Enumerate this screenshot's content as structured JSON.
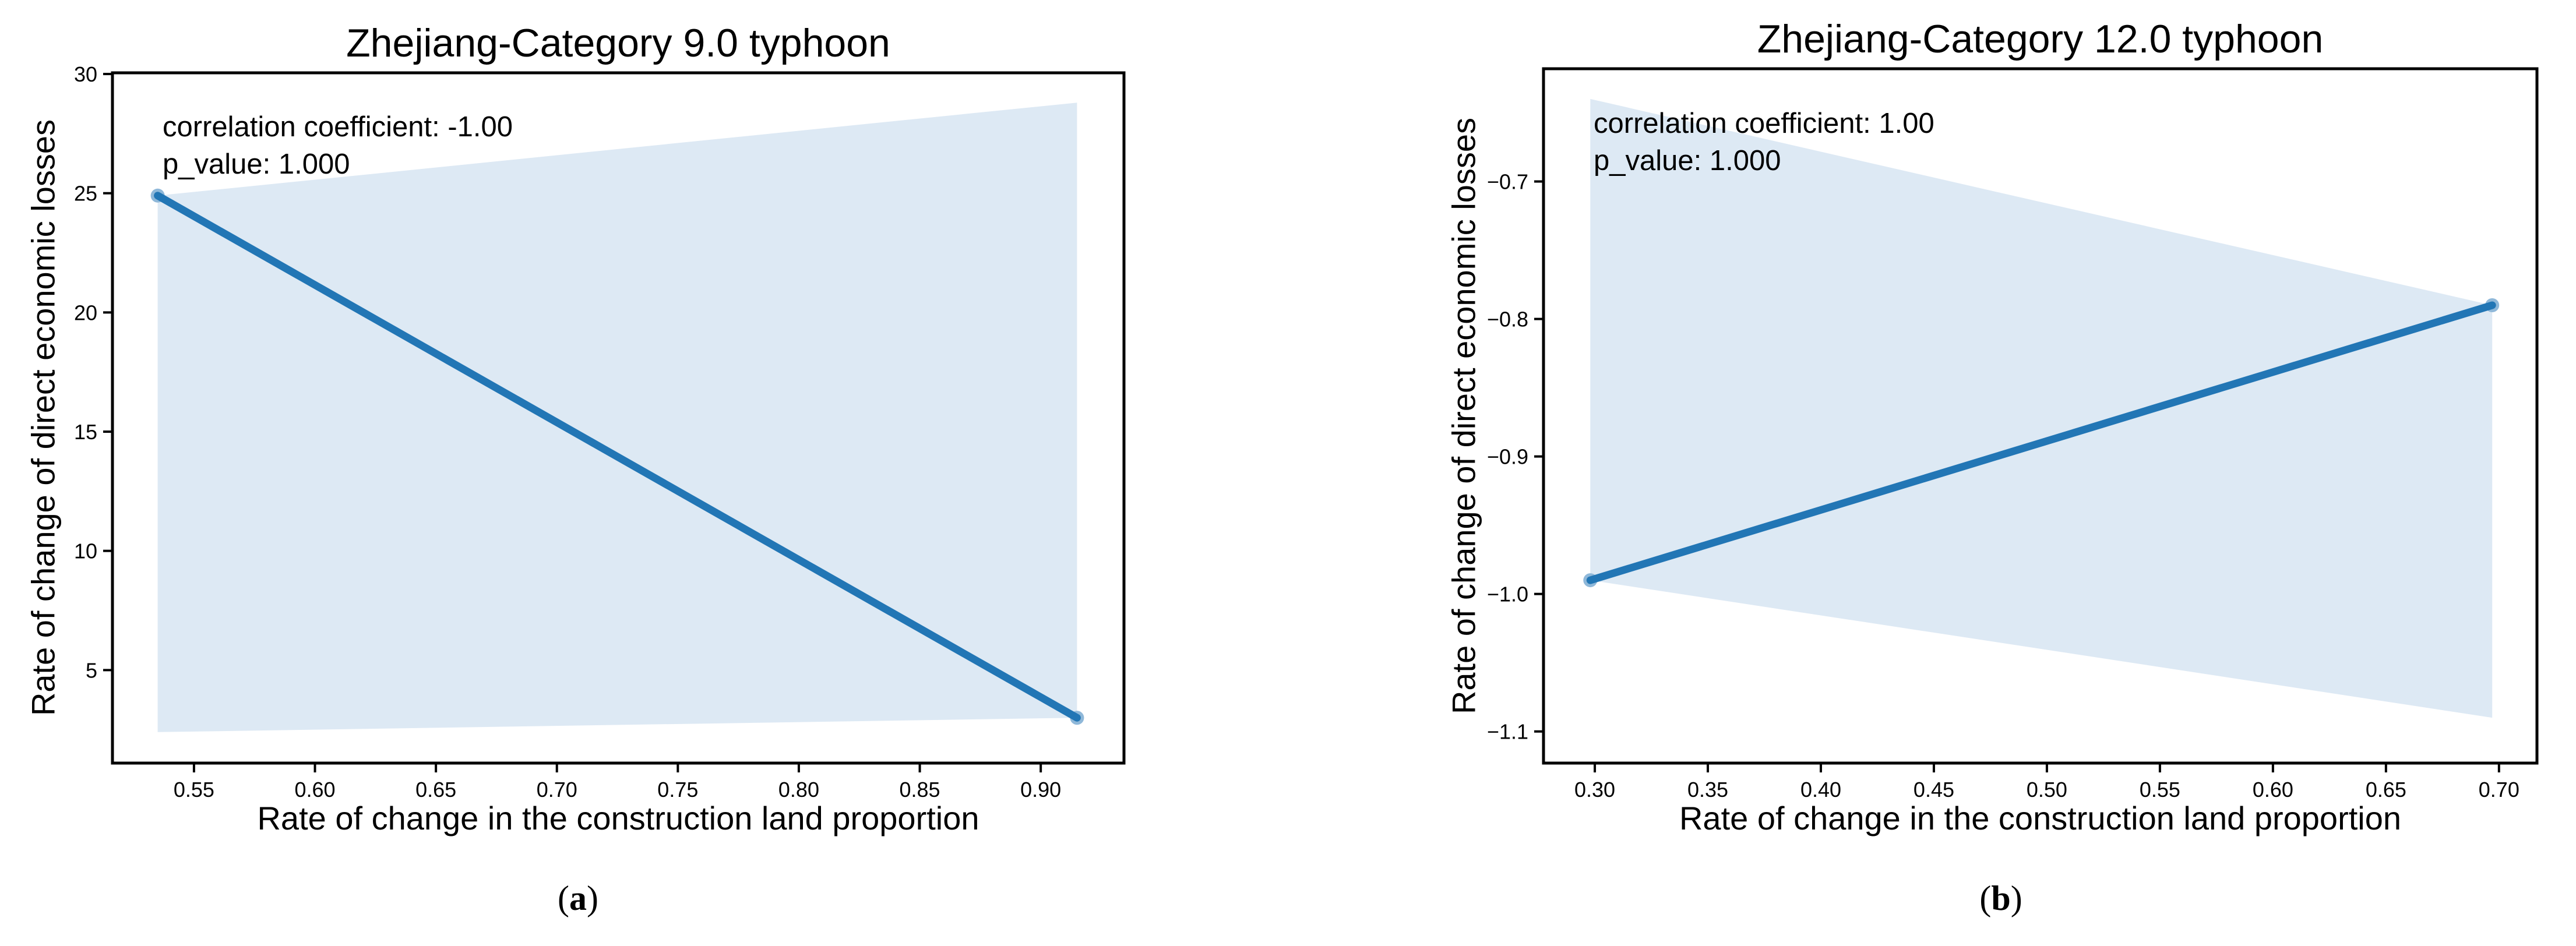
{
  "colors": {
    "line": "#2276b5",
    "marker": "#8fb8d9",
    "band": "#dde9f4",
    "axis": "#000000",
    "background": "#ffffff"
  },
  "chart_data": [
    {
      "type": "line",
      "title": "Zhejiang-Category 9.0 typhoon",
      "xlabel": "Rate of change in the construction land proportion",
      "ylabel": "Rate of change of direct economic losses",
      "annotation_lines": [
        "correlation coefficient: -1.00",
        "p_value: 1.000"
      ],
      "panel_label": {
        "open": "(",
        "letter": "a",
        "close": ")"
      },
      "x": [
        0.535,
        0.915
      ],
      "y": [
        24.9,
        3.0
      ],
      "band": {
        "upper": [
          [
            0.535,
            24.9
          ],
          [
            0.915,
            28.8
          ]
        ],
        "lower": [
          [
            0.535,
            2.4
          ],
          [
            0.915,
            3.0
          ]
        ]
      },
      "xlim": [
        0.5163,
        0.9344
      ],
      "ylim": [
        1.1,
        30.05
      ],
      "xticks": {
        "values": [
          0.55,
          0.6,
          0.65,
          0.7,
          0.75,
          0.8,
          0.85,
          0.9
        ],
        "labels": [
          "0.55",
          "0.60",
          "0.65",
          "0.70",
          "0.75",
          "0.80",
          "0.85",
          "0.90"
        ]
      },
      "yticks": {
        "values": [
          5,
          10,
          15,
          20,
          25,
          30
        ],
        "labels": [
          "5",
          "10",
          "15",
          "20",
          "25",
          "30"
        ]
      },
      "grid": false,
      "legend": "none"
    },
    {
      "type": "line",
      "title": "Zhejiang-Category 12.0 typhoon",
      "xlabel": "Rate of change in the construction land proportion",
      "ylabel": "Rate of change of direct economic losses",
      "annotation_lines": [
        "correlation coefficient: 1.00",
        "p_value: 1.000"
      ],
      "panel_label": {
        "open": "(",
        "letter": "b",
        "close": ")"
      },
      "x": [
        0.298,
        0.697
      ],
      "y": [
        -0.99,
        -0.79
      ],
      "band": {
        "upper": [
          [
            0.298,
            -0.64
          ],
          [
            0.697,
            -0.79
          ]
        ],
        "lower": [
          [
            0.298,
            -0.99
          ],
          [
            0.697,
            -1.09
          ]
        ]
      },
      "xlim": [
        0.2773,
        0.7168
      ],
      "ylim": [
        -1.123,
        -0.618
      ],
      "xticks": {
        "values": [
          0.3,
          0.35,
          0.4,
          0.45,
          0.5,
          0.55,
          0.6,
          0.65,
          0.7
        ],
        "labels": [
          "0.30",
          "0.35",
          "0.40",
          "0.45",
          "0.50",
          "0.55",
          "0.60",
          "0.65",
          "0.70"
        ]
      },
      "yticks": {
        "values": [
          -0.7,
          -0.8,
          -0.9,
          -1.0,
          -1.1
        ],
        "labels": [
          "−0.7",
          "−0.8",
          "−0.9",
          "−1.0",
          "−1.1"
        ]
      },
      "grid": false,
      "legend": "none"
    }
  ]
}
